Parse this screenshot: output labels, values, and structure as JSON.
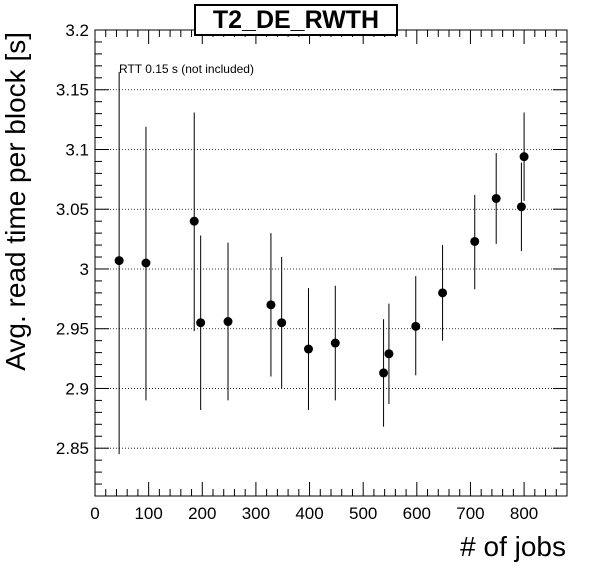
{
  "chart_data": {
    "type": "scatter",
    "title": "T2_DE_RWTH",
    "xlabel": "# of jobs",
    "ylabel": "Avg. read time per block [s]",
    "annotation": "RTT 0.15 s (not included)",
    "xlim": [
      0,
      880
    ],
    "ylim": [
      2.81,
      3.2
    ],
    "xticks": [
      0,
      100,
      200,
      300,
      400,
      500,
      600,
      700,
      800
    ],
    "xtick_labels": [
      "0",
      "100",
      "200",
      "300",
      "400",
      "500",
      "600",
      "700",
      "800"
    ],
    "yticks": [
      2.85,
      2.9,
      2.95,
      3.0,
      3.05,
      3.1,
      3.15,
      3.2
    ],
    "ytick_labels": [
      "2.85",
      "2.9",
      "2.95",
      "3",
      "3.05",
      "3.1",
      "3.15",
      "3.2"
    ],
    "grid": "horizontal dotted",
    "series": [
      {
        "marker": "filled circle",
        "color": "#000000",
        "points": [
          {
            "x": 45,
            "y": 3.007,
            "err_low": 2.845,
            "err_high": 3.165
          },
          {
            "x": 95,
            "y": 3.005,
            "err_low": 2.89,
            "err_high": 3.119
          },
          {
            "x": 185,
            "y": 3.04,
            "err_low": 2.948,
            "err_high": 3.131
          },
          {
            "x": 197,
            "y": 2.955,
            "err_low": 2.882,
            "err_high": 3.028
          },
          {
            "x": 248,
            "y": 2.956,
            "err_low": 2.89,
            "err_high": 3.022
          },
          {
            "x": 328,
            "y": 2.97,
            "err_low": 2.91,
            "err_high": 3.03
          },
          {
            "x": 348,
            "y": 2.955,
            "err_low": 2.9,
            "err_high": 3.01
          },
          {
            "x": 398,
            "y": 2.933,
            "err_low": 2.882,
            "err_high": 2.984
          },
          {
            "x": 448,
            "y": 2.938,
            "err_low": 2.89,
            "err_high": 2.986
          },
          {
            "x": 538,
            "y": 2.913,
            "err_low": 2.868,
            "err_high": 2.958
          },
          {
            "x": 548,
            "y": 2.929,
            "err_low": 2.887,
            "err_high": 2.971
          },
          {
            "x": 598,
            "y": 2.952,
            "err_low": 2.911,
            "err_high": 2.994
          },
          {
            "x": 648,
            "y": 2.98,
            "err_low": 2.94,
            "err_high": 3.02
          },
          {
            "x": 708,
            "y": 3.023,
            "err_low": 2.983,
            "err_high": 3.062
          },
          {
            "x": 748,
            "y": 3.059,
            "err_low": 3.021,
            "err_high": 3.097
          },
          {
            "x": 795,
            "y": 3.052,
            "err_low": 3.015,
            "err_high": 3.089
          },
          {
            "x": 800,
            "y": 3.094,
            "err_low": 3.057,
            "err_high": 3.131
          }
        ]
      }
    ]
  }
}
